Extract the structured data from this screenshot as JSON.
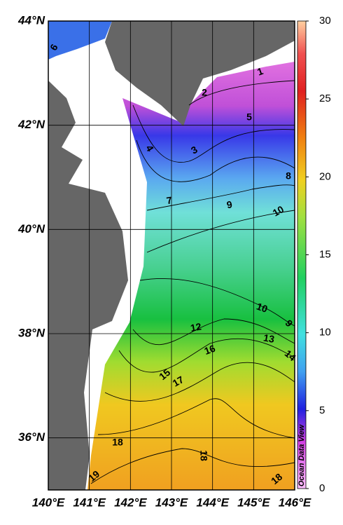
{
  "map": {
    "lonlim": [
      140,
      146
    ],
    "latlim": [
      35,
      44
    ],
    "xticks": [
      {
        "value": 140,
        "label": "140°E"
      },
      {
        "value": 141,
        "label": "141°E"
      },
      {
        "value": 142,
        "label": "142°E"
      },
      {
        "value": 143,
        "label": "143°E"
      },
      {
        "value": 144,
        "label": "144°E"
      },
      {
        "value": 145,
        "label": "145°E"
      },
      {
        "value": 146,
        "label": "146°E"
      }
    ],
    "yticks": [
      {
        "value": 44,
        "label": "44°N"
      },
      {
        "value": 42,
        "label": "42°N"
      },
      {
        "value": 40,
        "label": "40°N"
      },
      {
        "value": 38,
        "label": "38°N"
      },
      {
        "value": 36,
        "label": "36°N"
      }
    ],
    "colorbar": {
      "lim": [
        0,
        30
      ],
      "ticks": [
        0,
        5,
        10,
        15,
        20,
        25,
        30
      ]
    },
    "contour_labels": [
      6,
      1,
      2,
      5,
      4,
      3,
      8,
      7,
      9,
      10,
      10,
      9,
      12,
      13,
      16,
      15,
      17,
      14,
      18,
      18,
      19,
      18
    ],
    "watermark": "Ocean Data View"
  }
}
